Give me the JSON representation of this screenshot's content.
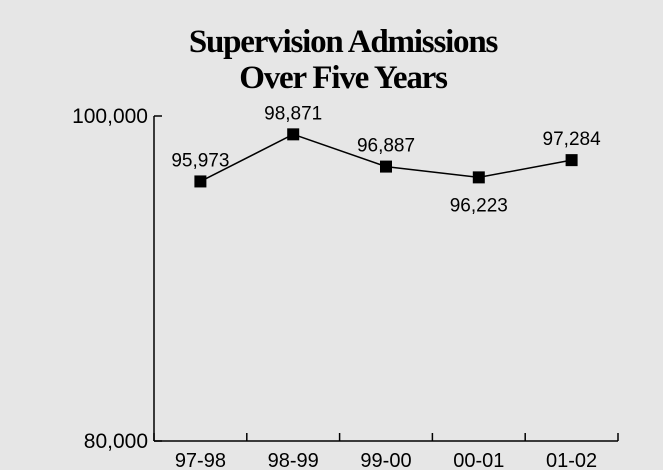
{
  "chart_data": {
    "type": "line",
    "title": "Supervision Admissions",
    "subtitle": "Over Five Years",
    "xlabel": "",
    "ylabel": "",
    "categories": [
      "97-98",
      "98-99",
      "99-00",
      "00-01",
      "01-02"
    ],
    "series": [
      {
        "values": [
          95973,
          98871,
          96887,
          96223,
          97284
        ],
        "labels": [
          "95,973",
          "98,871",
          "96,887",
          "96,223",
          "97,284"
        ],
        "label_positions": [
          "above",
          "above",
          "above",
          "below",
          "above"
        ]
      }
    ],
    "ylim": [
      80000,
      100000
    ],
    "yticks": [
      {
        "value": 80000,
        "label": "80,000"
      },
      {
        "value": 100000,
        "label": "100,000"
      }
    ],
    "grid": false,
    "marker": "square",
    "colors": {
      "background": "#e6e6e6",
      "line": "#000000"
    }
  }
}
